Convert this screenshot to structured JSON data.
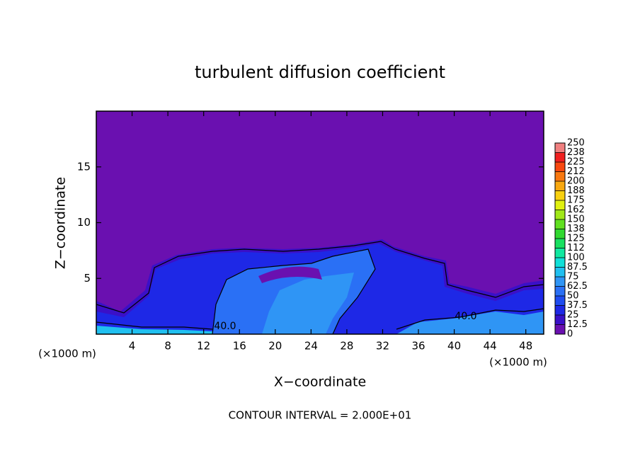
{
  "chart_data": {
    "type": "contour",
    "title": "turbulent diffusion coefficient",
    "x_label": "X−coordinate",
    "y_label": "Z−coordinate",
    "x_unit": "(×1000 m)",
    "y_unit": "(×1000 m)",
    "xlim": [
      0,
      50
    ],
    "ylim": [
      0,
      20
    ],
    "xticks": [
      4,
      8,
      12,
      16,
      20,
      24,
      28,
      32,
      36,
      40,
      44,
      48
    ],
    "yticks": [
      5,
      10,
      15
    ],
    "contour_interval": "CONTOUR INTERVAL = 2.000E+01",
    "annotations": [
      "40.0",
      "40.0"
    ],
    "colorbar": {
      "levels": [
        0,
        12.5,
        25,
        37.5,
        50,
        62.5,
        75,
        87.5,
        100,
        112,
        125,
        138,
        150,
        162,
        175,
        188,
        200,
        212,
        225,
        238,
        250
      ],
      "colors": [
        "#6a10b0",
        "#3a10c8",
        "#1e28e6",
        "#1f4cf0",
        "#2a70f5",
        "#2f95f5",
        "#20c0f0",
        "#10e0d8",
        "#10e8a0",
        "#18e060",
        "#30d830",
        "#60e020",
        "#a0e818",
        "#e0f010",
        "#f8d010",
        "#f8a810",
        "#f87810",
        "#f84810",
        "#f02020",
        "#f08080"
      ]
    }
  }
}
